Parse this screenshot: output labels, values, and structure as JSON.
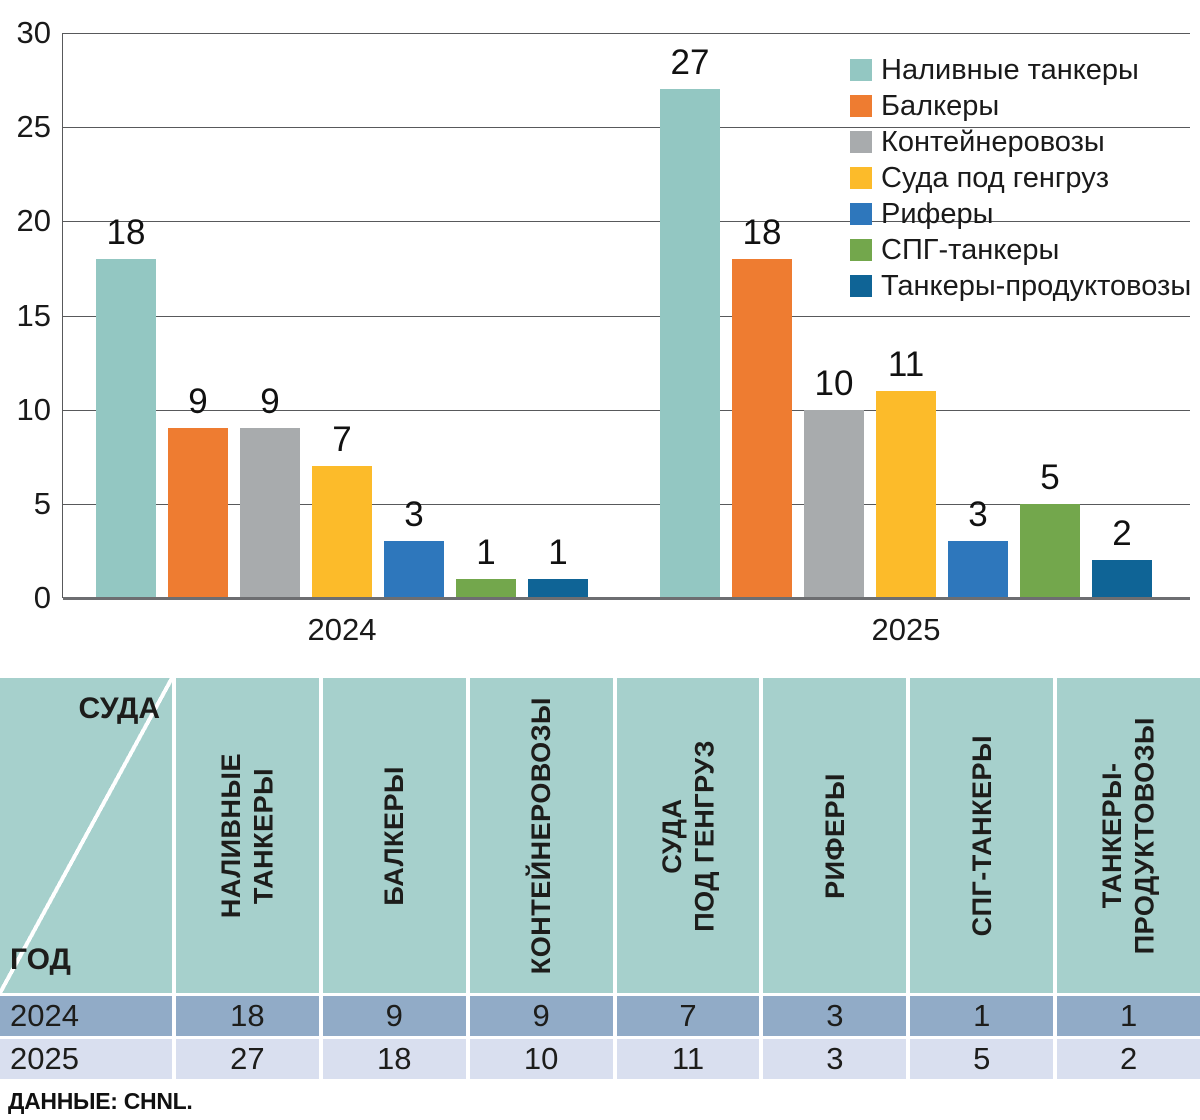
{
  "chart_data": {
    "type": "bar",
    "title": "",
    "xlabel": "",
    "ylabel": "",
    "categories": [
      "2024",
      "2025"
    ],
    "series": [
      {
        "name": "Наливные танкеры",
        "color": "#93c7c2",
        "values": [
          18,
          27
        ]
      },
      {
        "name": "Балкеры",
        "color": "#ee7c31",
        "values": [
          9,
          18
        ]
      },
      {
        "name": "Контейнеровозы",
        "color": "#a8abad",
        "values": [
          9,
          10
        ]
      },
      {
        "name": "Суда под генгруз",
        "color": "#fcbb2a",
        "values": [
          7,
          11
        ]
      },
      {
        "name": "Риферы",
        "color": "#2e77bc",
        "values": [
          3,
          3
        ]
      },
      {
        "name": "СПГ-танкеры",
        "color": "#73a74c",
        "values": [
          1,
          5
        ]
      },
      {
        "name": "Танкеры-продуктовозы",
        "color": "#0f6496",
        "values": [
          1,
          2
        ]
      }
    ],
    "ylim": [
      0,
      30
    ],
    "yticks": [
      0,
      5,
      10,
      15,
      20,
      25,
      30
    ],
    "grid": true,
    "legend_position": "top-right"
  },
  "table": {
    "corner": {
      "top_right": "СУДА",
      "bottom_left": "ГОД"
    },
    "columns": [
      "НАЛИВНЫЕ\nТАНКЕРЫ",
      "БАЛКЕРЫ",
      "КОНТЕЙНЕРОВОЗЫ",
      "СУДА\nПОД ГЕНГРУЗ",
      "РИФЕРЫ",
      "СПГ-ТАНКЕРЫ",
      "ТАНКЕРЫ-\nПРОДУКТОВОЗЫ"
    ],
    "rows": [
      {
        "year": "2024",
        "values": [
          18,
          9,
          9,
          7,
          3,
          1,
          1
        ],
        "bg": "#91abc7"
      },
      {
        "year": "2025",
        "values": [
          27,
          18,
          10,
          11,
          3,
          5,
          2
        ],
        "bg": "#d9dfef"
      }
    ]
  },
  "source": "ДАННЫЕ: CHNL.",
  "colors": {
    "gridline": "#58595b",
    "axis": "#6d6e71",
    "header_bg": "#a6d0cc",
    "text": "#1a1a1a"
  }
}
